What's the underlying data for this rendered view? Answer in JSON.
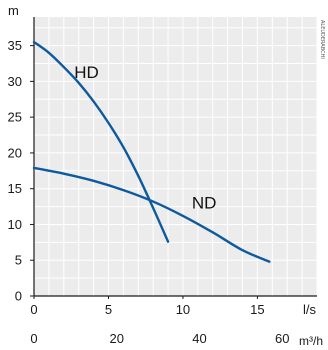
{
  "chart_data": {
    "type": "line",
    "ylabel_unit": "m",
    "x_primary_unit": "l/s",
    "x_secondary_unit": "m³/h",
    "x_primary_ticks": [
      0,
      5,
      10,
      15
    ],
    "x_secondary_ticks": [
      0,
      20,
      40,
      60
    ],
    "y_ticks": [
      0,
      5,
      10,
      15,
      20,
      25,
      30,
      35
    ],
    "xlim": [
      0,
      19
    ],
    "ylim": [
      0,
      39
    ],
    "grid": true,
    "series": [
      {
        "name": "HD",
        "color": "#0d5a9e",
        "x": [
          0,
          1,
          2,
          3,
          4,
          5,
          6,
          7,
          8,
          9
        ],
        "y": [
          35.5,
          34,
          32,
          29.8,
          27.2,
          24.2,
          20.8,
          16.8,
          12.3,
          7.6
        ]
      },
      {
        "name": "ND",
        "color": "#0d5a9e",
        "x": [
          0,
          2,
          4,
          6,
          8,
          10,
          12,
          14,
          15.8
        ],
        "y": [
          17.9,
          17.1,
          16.1,
          14.8,
          13.2,
          11.2,
          8.9,
          6.4,
          4.8
        ]
      }
    ]
  },
  "watermark_text": "ALEUDERABCHI"
}
